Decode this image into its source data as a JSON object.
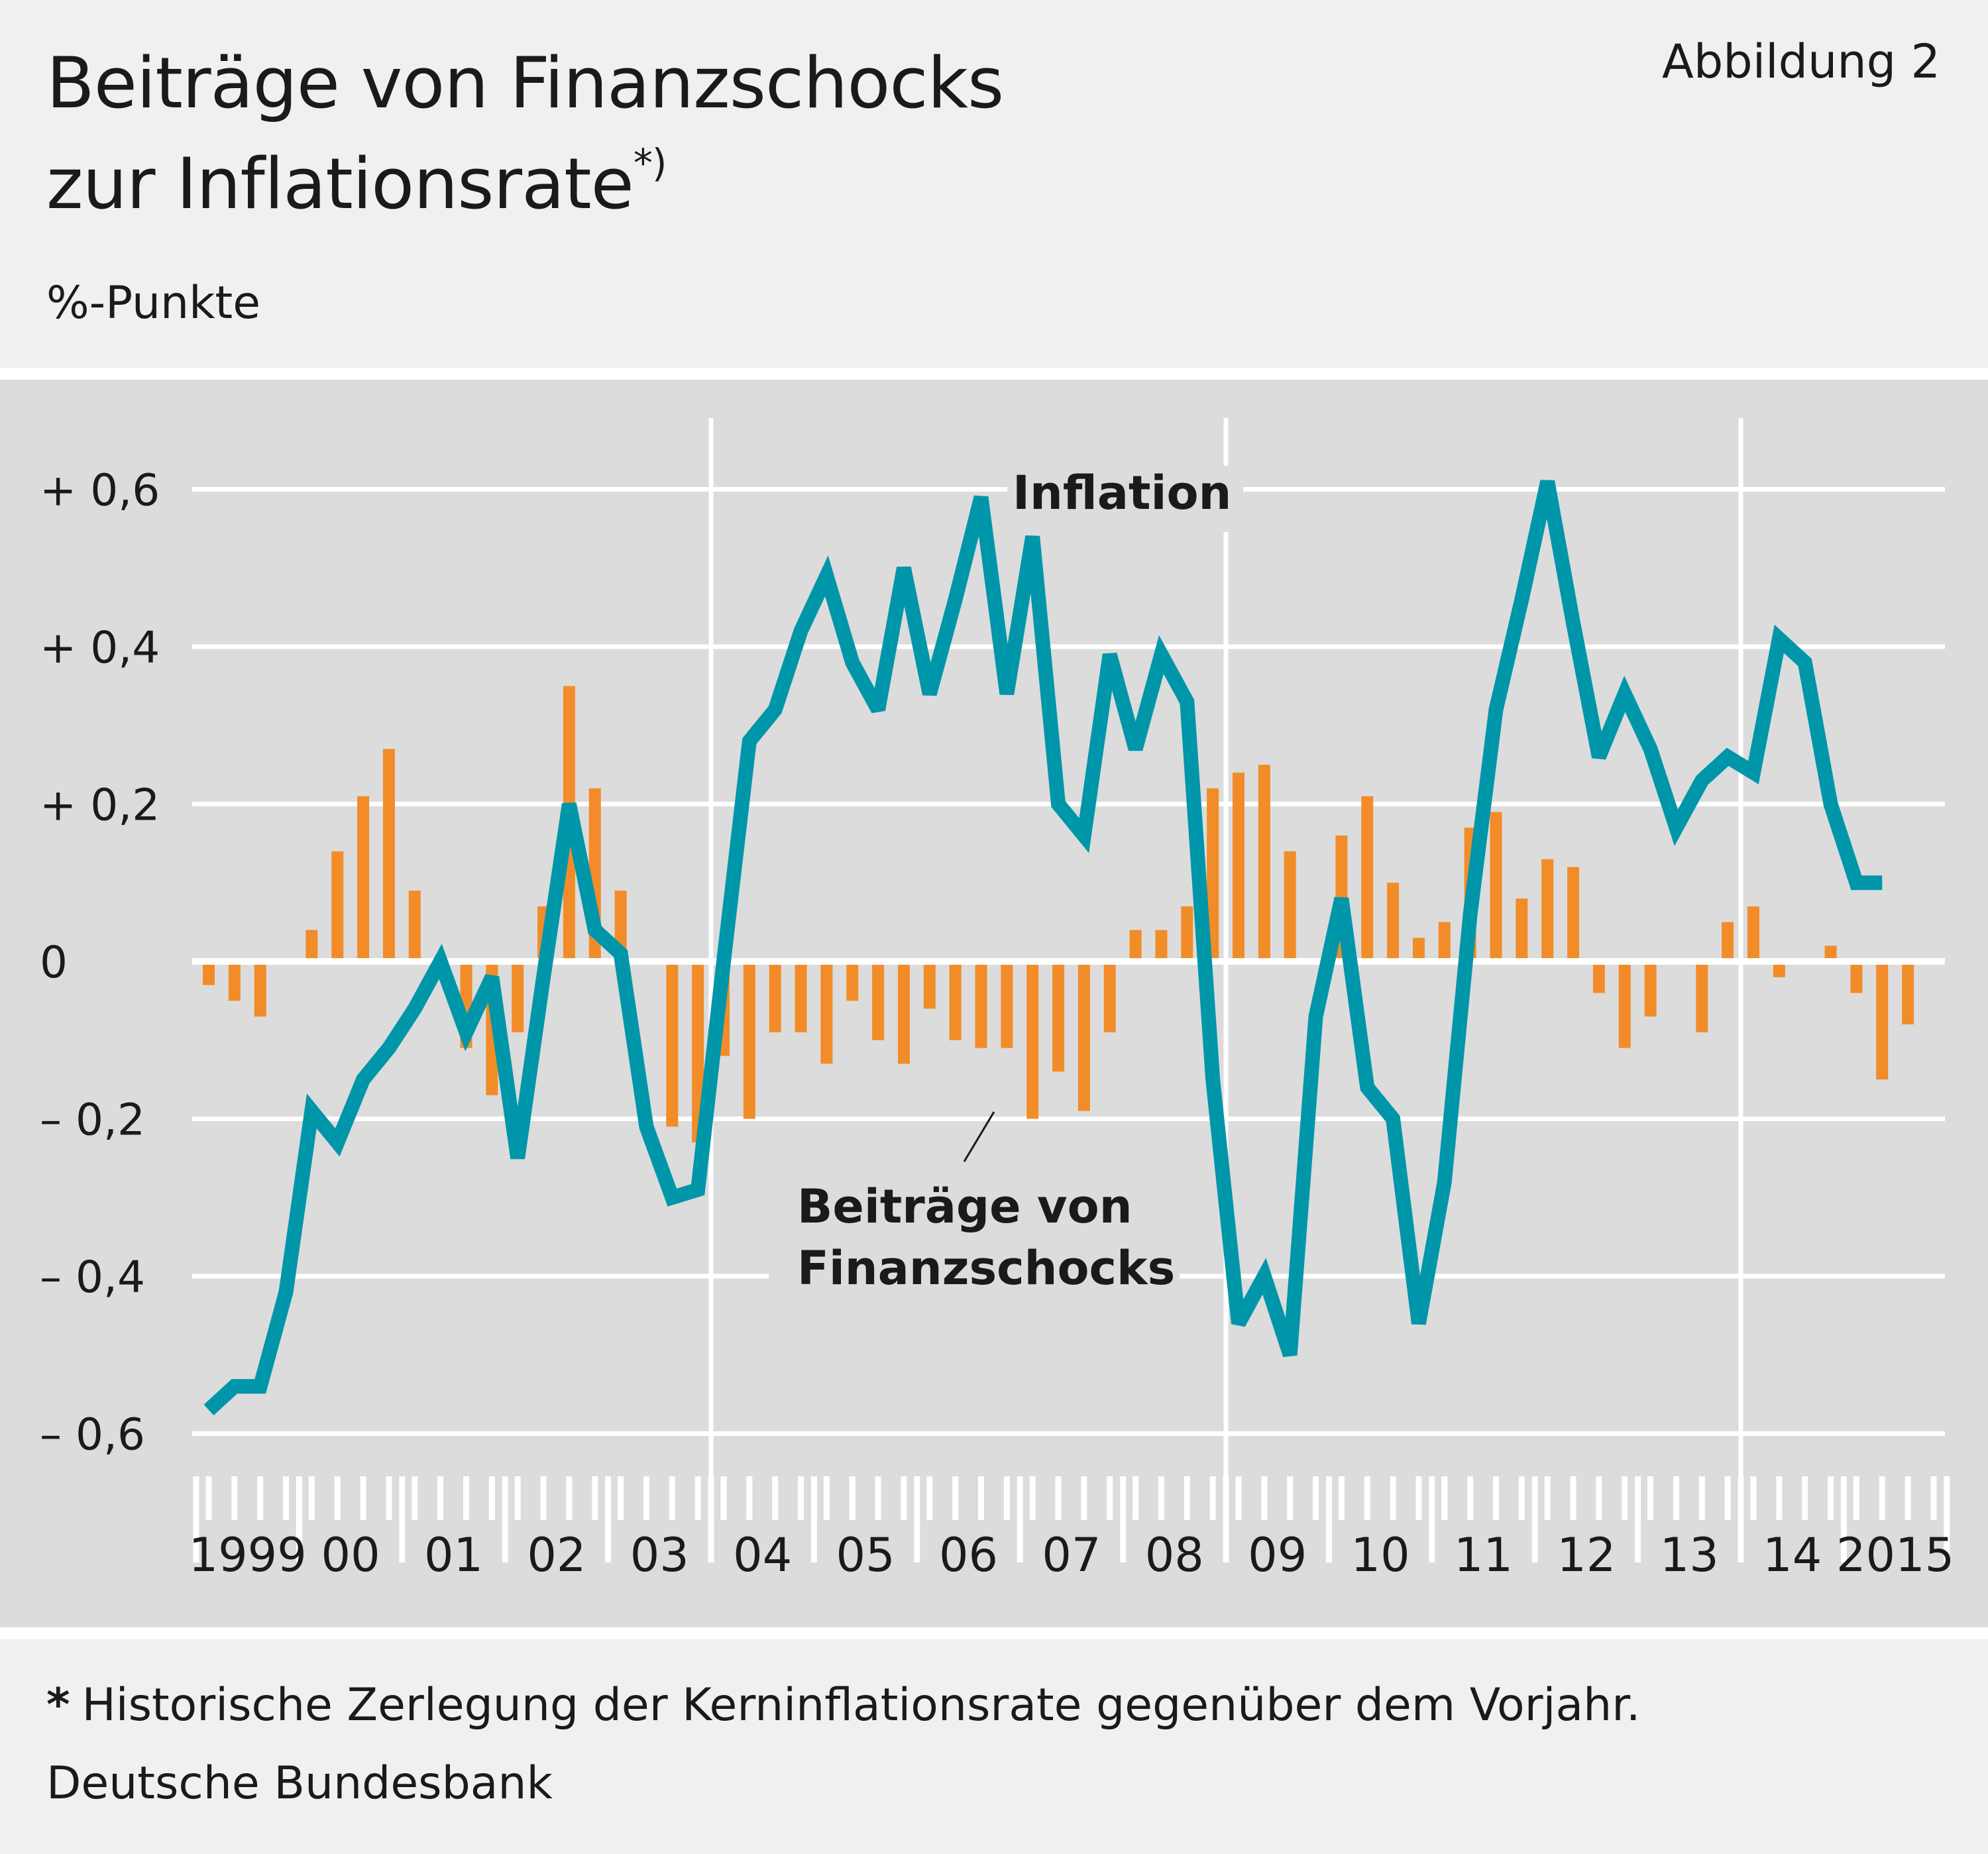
{
  "header": {
    "title_line1": "Beiträge von Finanzschocks",
    "title_line2": "zur Inflationsrate",
    "title_mark": "*)",
    "figure_label": "Abbildung 2",
    "unit": "%-Punkte"
  },
  "footer": {
    "footnote_mark": "*",
    "footnote": "Historische Zerlegung der Kerninflationsrate gegenüber dem Vorjahr.",
    "source": "Deutsche Bundesbank"
  },
  "chart_data": {
    "type": "bar",
    "y_ticks": [
      "+ 0,6",
      "+ 0,4",
      "+ 0,2",
      "0",
      "– 0,2",
      "– 0,4",
      "– 0,6"
    ],
    "y_tick_values": [
      0.6,
      0.4,
      0.2,
      0,
      -0.2,
      -0.4,
      -0.6
    ],
    "ylim": [
      -0.66,
      0.69
    ],
    "x_year_labels": [
      "1999",
      "00",
      "01",
      "02",
      "03",
      "04",
      "05",
      "06",
      "07",
      "08",
      "09",
      "10",
      "11",
      "12",
      "13",
      "14",
      "2015"
    ],
    "x_start": "1999-Q1",
    "grid": true,
    "colors": {
      "line": "#0096aa",
      "bars": "#f28c28",
      "background": "#dcdcdc",
      "grid": "#ffffff"
    },
    "series": [
      {
        "name": "Beiträge von Finanzschocks",
        "type": "bar",
        "values": [
          -0.03,
          -0.05,
          -0.07,
          0,
          0.04,
          0.14,
          0.21,
          0.27,
          0.09,
          0,
          -0.11,
          -0.17,
          -0.09,
          0.07,
          0.35,
          0.22,
          0.09,
          0,
          -0.21,
          -0.23,
          -0.12,
          -0.2,
          -0.09,
          -0.09,
          -0.13,
          -0.05,
          -0.1,
          -0.13,
          -0.06,
          -0.1,
          -0.11,
          -0.11,
          -0.2,
          -0.14,
          -0.19,
          -0.09,
          0.04,
          0.04,
          0.07,
          0.22,
          0.24,
          0.25,
          0.14,
          0,
          0.16,
          0.21,
          0.1,
          0.03,
          0.05,
          0.17,
          0.19,
          0.08,
          0.13,
          0.12,
          -0.04,
          -0.11,
          -0.07,
          0,
          -0.09,
          0.05,
          0.07,
          -0.02,
          0,
          0.02,
          -0.04,
          -0.15,
          -0.08
        ]
      },
      {
        "name": "Inflation",
        "type": "line",
        "values": [
          -0.57,
          -0.54,
          -0.54,
          -0.42,
          -0.19,
          -0.23,
          -0.15,
          -0.11,
          -0.06,
          0.0,
          -0.09,
          -0.02,
          -0.25,
          -0.02,
          0.2,
          0.04,
          0.01,
          -0.21,
          -0.3,
          -0.29,
          0.0,
          0.28,
          0.32,
          0.42,
          0.49,
          0.38,
          0.32,
          0.5,
          0.34,
          0.46,
          0.59,
          0.34,
          0.54,
          0.2,
          0.16,
          0.39,
          0.27,
          0.39,
          0.33,
          -0.15,
          -0.46,
          -0.4,
          -0.5,
          -0.07,
          0.08,
          -0.16,
          -0.2,
          -0.46,
          -0.28,
          0.06,
          0.32,
          0.46,
          0.61,
          0.43,
          0.26,
          0.34,
          0.27,
          0.17,
          0.23,
          0.26,
          0.24,
          0.41,
          0.38,
          0.2,
          0.1,
          0.1
        ]
      }
    ],
    "annotations": {
      "inflation_label": "Inflation",
      "shocks_label_line1": "Beiträge von",
      "shocks_label_line2": "Finanzschocks"
    }
  }
}
